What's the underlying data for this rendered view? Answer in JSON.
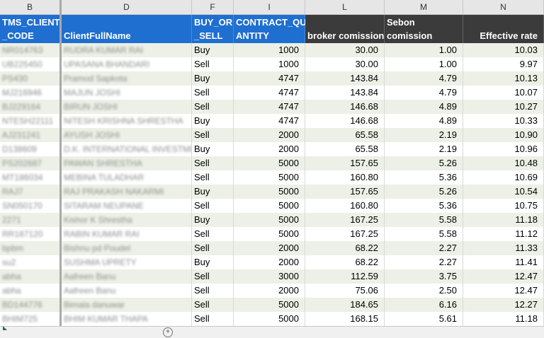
{
  "columns": {
    "b": "B",
    "d": "D",
    "f": "F",
    "i": "I",
    "l": "L",
    "m": "M",
    "n": "N"
  },
  "headers": {
    "tms_l1": "TMS_CLIENT",
    "tms_l2": "_CODE",
    "client": "ClientFullName",
    "buy_l1": "BUY_OR",
    "buy_l2": "_SELL",
    "qty_l1": "CONTRACT_QU",
    "qty_l2": "ANTITY",
    "broker": "broker comission",
    "sebon_l1": "Sebon",
    "sebon_l2": "comission",
    "rate": "Effective rate"
  },
  "colors": {
    "header_blue": "#1f6fd0",
    "header_dark": "#3b3b3b",
    "band": "#edf0e6"
  },
  "rows": [
    {
      "code": "NR014763",
      "name": "RUDRA KUMAR RAI",
      "side": "Buy",
      "qty": "1000",
      "broker": "30.00",
      "sebon": "1.00",
      "rate": "10.03"
    },
    {
      "code": "UB225450",
      "name": "UPASANA BHANDARI",
      "side": "Sell",
      "qty": "1000",
      "broker": "30.00",
      "sebon": "1.00",
      "rate": "9.97"
    },
    {
      "code": "PS430",
      "name": "Pramod Sapkota",
      "side": "Buy",
      "qty": "4747",
      "broker": "143.84",
      "sebon": "4.79",
      "rate": "10.13"
    },
    {
      "code": "MJ216946",
      "name": "MAJUN JOSHI",
      "side": "Sell",
      "qty": "4747",
      "broker": "143.84",
      "sebon": "4.79",
      "rate": "10.07"
    },
    {
      "code": "BJ229164",
      "name": "BIRUN JOSHI",
      "side": "Sell",
      "qty": "4747",
      "broker": "146.68",
      "sebon": "4.89",
      "rate": "10.27"
    },
    {
      "code": "NTESH22111",
      "name": "NITESH KRISHNA SHRESTHA",
      "side": "Buy",
      "qty": "4747",
      "broker": "146.68",
      "sebon": "4.89",
      "rate": "10.33"
    },
    {
      "code": "AJ231241",
      "name": "AYUSH JOSHI",
      "side": "Sell",
      "qty": "2000",
      "broker": "65.58",
      "sebon": "2.19",
      "rate": "10.90"
    },
    {
      "code": "D138609",
      "name": "D.K. INTERNATIONAL INVESTMENT",
      "side": "Buy",
      "qty": "2000",
      "broker": "65.58",
      "sebon": "2.19",
      "rate": "10.96"
    },
    {
      "code": "PS202687",
      "name": "PAWAN SHRESTHA",
      "side": "Sell",
      "qty": "5000",
      "broker": "157.65",
      "sebon": "5.26",
      "rate": "10.48"
    },
    {
      "code": "MT186034",
      "name": "MEBINA TULADHAR",
      "side": "Sell",
      "qty": "5000",
      "broker": "160.80",
      "sebon": "5.36",
      "rate": "10.69"
    },
    {
      "code": "RAJ7",
      "name": "RAJ PRAKASH NAKARMI",
      "side": "Buy",
      "qty": "5000",
      "broker": "157.65",
      "sebon": "5.26",
      "rate": "10.54"
    },
    {
      "code": "SN050170",
      "name": "SITARAM NEUPANE",
      "side": "Sell",
      "qty": "5000",
      "broker": "160.80",
      "sebon": "5.36",
      "rate": "10.75"
    },
    {
      "code": "2271",
      "name": "Kishor K Shrestha",
      "side": "Buy",
      "qty": "5000",
      "broker": "167.25",
      "sebon": "5.58",
      "rate": "11.18"
    },
    {
      "code": "RR187120",
      "name": "RABIN KUMAR RAI",
      "side": "Sell",
      "qty": "5000",
      "broker": "167.25",
      "sebon": "5.58",
      "rate": "11.12"
    },
    {
      "code": "bpbm",
      "name": "Bishnu pd Poudel",
      "side": "Sell",
      "qty": "2000",
      "broker": "68.22",
      "sebon": "2.27",
      "rate": "11.33"
    },
    {
      "code": "su2",
      "name": "SUSHMA UPRETY",
      "side": "Buy",
      "qty": "2000",
      "broker": "68.22",
      "sebon": "2.27",
      "rate": "11.41"
    },
    {
      "code": "abha",
      "name": "Aafreen Banu",
      "side": "Sell",
      "qty": "3000",
      "broker": "112.59",
      "sebon": "3.75",
      "rate": "12.47"
    },
    {
      "code": "abha",
      "name": "Aafreen Banu",
      "side": "Sell",
      "qty": "2000",
      "broker": "75.06",
      "sebon": "2.50",
      "rate": "12.47"
    },
    {
      "code": "BD144776",
      "name": "Bimala danuwar",
      "side": "Sell",
      "qty": "5000",
      "broker": "184.65",
      "sebon": "6.16",
      "rate": "12.27"
    },
    {
      "code": "BHIM725",
      "name": "BHIM KUMAR THAPA",
      "side": "Sell",
      "qty": "5000",
      "broker": "168.15",
      "sebon": "5.61",
      "rate": "11.18"
    }
  ]
}
